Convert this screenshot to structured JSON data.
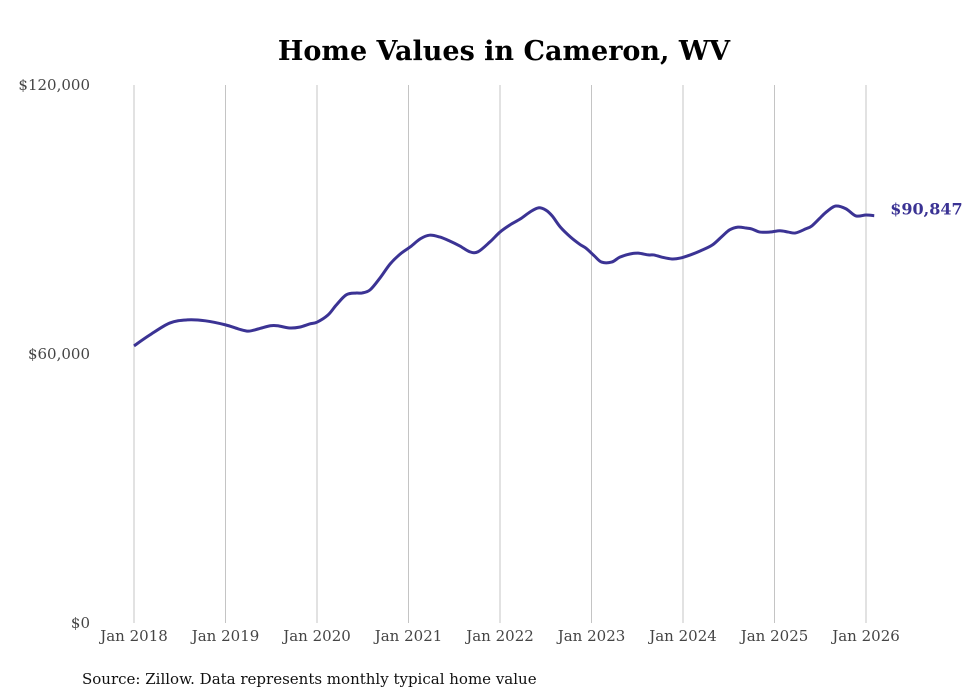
{
  "chart_data": {
    "type": "line",
    "title": "Home Values in Cameron, WV",
    "xlabel": "",
    "ylabel": "",
    "source": "Source: Zillow. Data represents monthly typical home value",
    "ylim": [
      0,
      120000
    ],
    "xlim": [
      2018,
      2026.1
    ],
    "yticks": [
      0,
      60000,
      120000
    ],
    "ytick_labels": [
      "$0",
      "$60,000",
      "$120,000"
    ],
    "xticks": [
      2018,
      2019,
      2020,
      2021,
      2022,
      2023,
      2024,
      2025,
      2026
    ],
    "xtick_labels": [
      "Jan 2018",
      "Jan 2019",
      "Jan 2020",
      "Jan 2021",
      "Jan 2022",
      "Jan 2023",
      "Jan 2024",
      "Jan 2025",
      "Jan 2026"
    ],
    "grid": "vertical",
    "line_color": "#3b3394",
    "end_label": "$90,847",
    "series": [
      {
        "name": "Typical home value",
        "x": [
          2018.0,
          2018.17,
          2018.39,
          2018.58,
          2018.78,
          2019.0,
          2019.14,
          2019.25,
          2019.36,
          2019.49,
          2019.57,
          2019.7,
          2019.81,
          2019.92,
          2020.0,
          2020.12,
          2020.21,
          2020.32,
          2020.43,
          2020.49,
          2020.58,
          2020.69,
          2020.8,
          2020.91,
          2021.02,
          2021.13,
          2021.23,
          2021.34,
          2021.45,
          2021.56,
          2021.67,
          2021.76,
          2021.89,
          2022.0,
          2022.11,
          2022.22,
          2022.33,
          2022.42,
          2022.5,
          2022.57,
          2022.66,
          2022.77,
          2022.87,
          2022.94,
          2023.03,
          2023.11,
          2023.22,
          2023.31,
          2023.42,
          2023.51,
          2023.62,
          2023.68,
          2023.77,
          2023.88,
          2023.97,
          2024.08,
          2024.19,
          2024.32,
          2024.43,
          2024.51,
          2024.6,
          2024.69,
          2024.75,
          2024.84,
          2024.95,
          2025.06,
          2025.15,
          2025.23,
          2025.34,
          2025.41,
          2025.52,
          2025.58,
          2025.67,
          2025.78,
          2025.89,
          2026.0,
          2026.09
        ],
        "values": [
          61800,
          64200,
          66900,
          67600,
          67400,
          66500,
          65600,
          65100,
          65600,
          66300,
          66300,
          65800,
          66000,
          66700,
          67100,
          68700,
          70900,
          73200,
          73600,
          73600,
          74300,
          77000,
          80100,
          82300,
          83900,
          85700,
          86500,
          86100,
          85200,
          84100,
          82800,
          82800,
          85000,
          87200,
          88800,
          90100,
          91700,
          92600,
          92100,
          90800,
          88300,
          86100,
          84500,
          83600,
          81900,
          80500,
          80500,
          81600,
          82300,
          82500,
          82100,
          82100,
          81600,
          81200,
          81400,
          82100,
          83000,
          84300,
          86300,
          87700,
          88300,
          88100,
          87900,
          87200,
          87200,
          87500,
          87200,
          87000,
          87900,
          88600,
          90800,
          91900,
          93000,
          92400,
          90800,
          91000,
          90847
        ]
      }
    ]
  }
}
